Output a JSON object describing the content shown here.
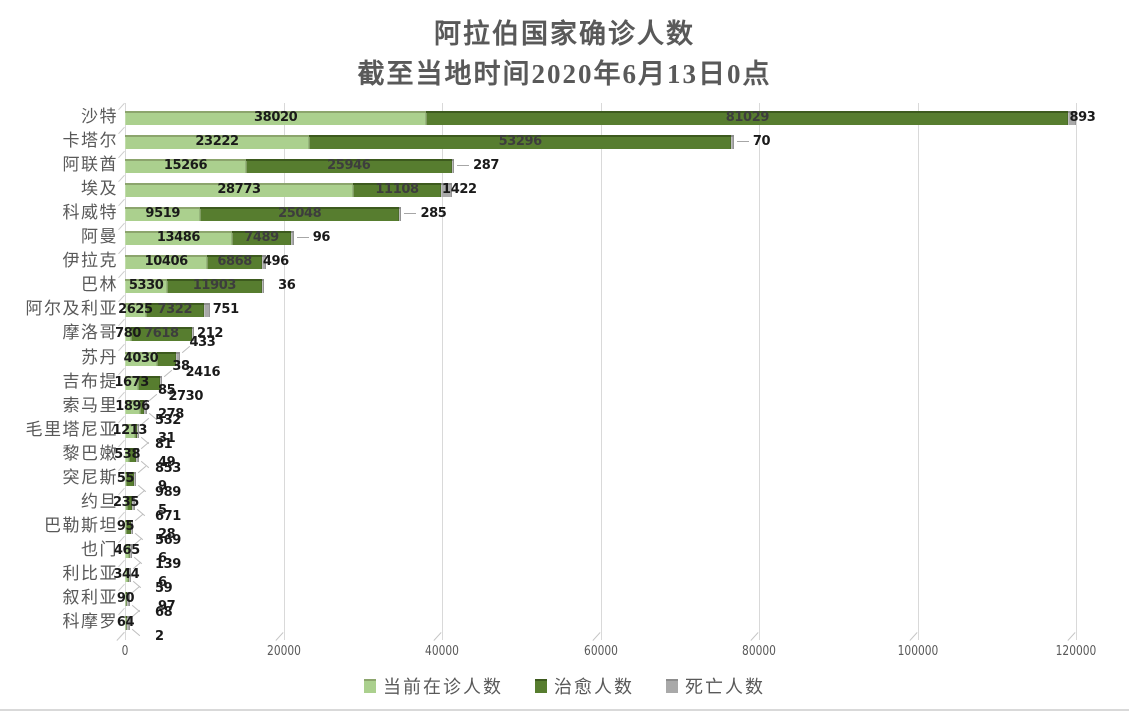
{
  "title": {
    "line1": "阿拉伯国家确诊人数",
    "line2": "截至当地时间2020年6月13日0点"
  },
  "colors": {
    "active": "#abd08e",
    "active_edge": "#8ca56d",
    "cured": "#577d2f",
    "cured_edge": "#3d5a1e",
    "dead": "#a9a9a9",
    "dead_edge": "#8d8d8d",
    "grid": "#d9d9d9",
    "axis_text": "#595959",
    "label_black": "#1a1a1a",
    "label_on_dark": "#3d3d3d"
  },
  "legend": {
    "items": [
      {
        "key": "active",
        "label": "当前在诊人数"
      },
      {
        "key": "cured",
        "label": "治愈人数"
      },
      {
        "key": "dead",
        "label": "死亡人数"
      }
    ]
  },
  "chart_data": {
    "type": "bar",
    "orientation": "horizontal",
    "stacked": true,
    "title": "阿拉伯国家确诊人数",
    "subtitle": "截至当地时间2020年6月13日0点",
    "xlim": [
      0,
      120000
    ],
    "x_ticks": [
      "0",
      "20000",
      "40000",
      "60000",
      "80000",
      "100000",
      "120000"
    ],
    "grid": true,
    "legend_position": "bottom",
    "series_names": [
      "当前在诊人数",
      "治愈人数",
      "死亡人数"
    ],
    "categories": [
      "沙特",
      "卡塔尔",
      "阿联酋",
      "埃及",
      "科威特",
      "阿曼",
      "伊拉克",
      "巴林",
      "阿尔及利亚",
      "摩洛哥",
      "苏丹",
      "吉布提",
      "索马里",
      "毛里塔尼亚",
      "黎巴嫩",
      "突尼斯",
      "约旦",
      "巴勒斯坦",
      "也门",
      "利比亚",
      "叙利亚",
      "科摩罗"
    ],
    "rows": [
      {
        "name": "沙特",
        "active": 38020,
        "cured": 81029,
        "dead": 893,
        "cured_label": "inside",
        "dead_label": "end"
      },
      {
        "name": "卡塔尔",
        "active": 23222,
        "cured": 53296,
        "dead": 70,
        "cured_label": "inside",
        "dead_label": "leader"
      },
      {
        "name": "阿联酋",
        "active": 15266,
        "cured": 25946,
        "dead": 287,
        "cured_label": "inside",
        "dead_label": "leader"
      },
      {
        "name": "埃及",
        "active": 28773,
        "cured": 11108,
        "dead": 1422,
        "cured_label": "inside",
        "dead_label": "end"
      },
      {
        "name": "科威特",
        "active": 9519,
        "cured": 25048,
        "dead": 285,
        "cured_label": "inside",
        "dead_label": "leader"
      },
      {
        "name": "阿曼",
        "active": 13486,
        "cured": 7489,
        "dead": 96,
        "cured_label": "inside",
        "dead_label": "leader"
      },
      {
        "name": "伊拉克",
        "active": 10406,
        "cured": 6868,
        "dead": 496,
        "cured_label": "inside",
        "dead_label": "end"
      },
      {
        "name": "巴林",
        "active": 5330,
        "cured": 11903,
        "dead": 36,
        "cured_label": "inside",
        "dead_label": "right-far"
      },
      {
        "name": "阿尔及利亚",
        "active": 2625,
        "cured": 7322,
        "dead": 751,
        "cured_label": "inside",
        "dead_label": "right"
      },
      {
        "name": "摩洛哥",
        "active": 780,
        "cured": 7618,
        "dead": 212,
        "cured_label": "inside",
        "dead_label": "right"
      },
      {
        "name": "苏丹",
        "active": 4030,
        "cured": 2416,
        "dead": 433,
        "cured_label": "below",
        "dead_label": "above"
      },
      {
        "name": "吉布提",
        "active": 1673,
        "cured": 2730,
        "dead": 38,
        "cured_label": "below",
        "dead_label": "above"
      },
      {
        "name": "索马里",
        "active": 1896,
        "cured": 532,
        "dead": 85,
        "cured_label": "below",
        "dead_label": "above"
      },
      {
        "name": "毛里塔尼亚",
        "active": 1213,
        "cured": 278,
        "dead": 81,
        "cured_label": "above",
        "dead_label": "below"
      },
      {
        "name": "黎巴嫩",
        "active": 538,
        "cured": 853,
        "dead": 31,
        "cured_label": "below",
        "dead_label": "above"
      },
      {
        "name": "突尼斯",
        "active": 55,
        "cured": 989,
        "dead": 49,
        "cured_label": "below",
        "dead_label": "above"
      },
      {
        "name": "约旦",
        "active": 235,
        "cured": 671,
        "dead": 9,
        "cured_label": "below",
        "dead_label": "above"
      },
      {
        "name": "巴勒斯坦",
        "active": 95,
        "cured": 569,
        "dead": 5,
        "cured_label": "below",
        "dead_label": "above"
      },
      {
        "name": "也门",
        "active": 465,
        "cured": 28,
        "dead": 139,
        "cured_label": "above",
        "dead_label": "below"
      },
      {
        "name": "利比亚",
        "active": 344,
        "cured": 59,
        "dead": 6,
        "cured_label": "below",
        "dead_label": "above"
      },
      {
        "name": "叙利亚",
        "active": 90,
        "cured": 68,
        "dead": 6,
        "cured_label": "below",
        "dead_label": "above"
      },
      {
        "name": "科摩罗",
        "active": 64,
        "cured": 97,
        "dead": 2,
        "cured_label": "above",
        "dead_label": "below"
      }
    ]
  }
}
